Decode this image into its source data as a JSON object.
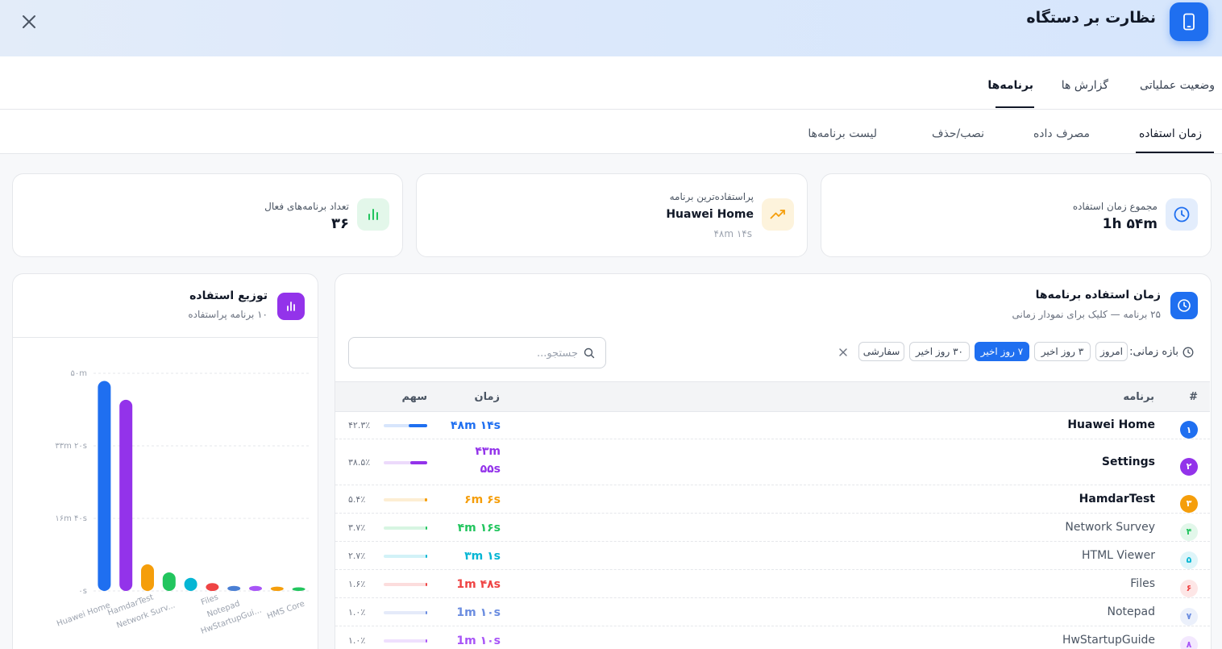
{
  "header": {
    "title": "نظارت بر دستگاه",
    "device_icon": "smartphone-icon",
    "close_icon": "close-icon"
  },
  "main_tabs": [
    {
      "label": "وضعیت عملیاتی",
      "active": false
    },
    {
      "label": "گزارش ها",
      "active": false
    },
    {
      "label": "برنامه‌ها",
      "active": true
    }
  ],
  "sub_tabs": [
    {
      "label": "زمان استفاده",
      "active": true
    },
    {
      "label": "مصرف داده",
      "active": false
    },
    {
      "label": "نصب/حذف",
      "active": false
    },
    {
      "label": "لیست برنامه‌ها",
      "active": false
    }
  ],
  "stats": {
    "total_time": {
      "label": "مجموع زمان استفاده",
      "value": "1h ۵۴m",
      "icon": "clock-icon",
      "color": "#1f6ff0"
    },
    "most_used": {
      "label": "پراستفاده‌ترین برنامه",
      "value": "Huawei Home",
      "sub": "۴۸m ۱۴s",
      "icon": "trending-up-icon",
      "color": "#f59e0b"
    },
    "active_count": {
      "label": "تعداد برنامه‌های فعال",
      "value": "۳۶",
      "icon": "bar-chart-icon",
      "color": "#22c55e"
    }
  },
  "usage_panel": {
    "title": "زمان استفاده برنامه‌ها",
    "subtitle": "۲۵ برنامه — کلیک برای نمودار زمانی",
    "range_label": "بازه زمانی:",
    "ranges": [
      {
        "label": "امروز",
        "active": false
      },
      {
        "label": "۳ روز اخیر",
        "active": false
      },
      {
        "label": "۷ روز اخیر",
        "active": true
      },
      {
        "label": "۳۰ روز اخیر",
        "active": false
      },
      {
        "label": "سفارشی",
        "active": false
      }
    ],
    "search_placeholder": "جستجو...",
    "columns": {
      "index": "#",
      "app": "برنامه",
      "time": "زمان",
      "share": "سهم"
    },
    "rows": [
      {
        "n": "۱",
        "app": "Huawei Home",
        "time": "۴۸m ۱۴s",
        "share": "۴۲.۳٪",
        "share_value": 42.3,
        "color": "#1f6ff0",
        "bold": true
      },
      {
        "n": "۲",
        "app": "Settings",
        "time": "۴۳m ۵۵s",
        "share": "۳۸.۵٪",
        "share_value": 38.5,
        "color": "#9333ea",
        "bold": true
      },
      {
        "n": "۳",
        "app": "HamdarTest",
        "time": "۶m ۶s",
        "share": "۵.۴٪",
        "share_value": 5.4,
        "color": "#f59e0b",
        "bold": true
      },
      {
        "n": "۴",
        "app": "Network Survey",
        "time": "۴m ۱۶s",
        "share": "۳.۷٪",
        "share_value": 3.7,
        "color": "#22c55e",
        "bold": false
      },
      {
        "n": "۵",
        "app": "HTML Viewer",
        "time": "۳m ۱s",
        "share": "۲.۷٪",
        "share_value": 2.7,
        "color": "#06b6d4",
        "bold": false
      },
      {
        "n": "۶",
        "app": "Files",
        "time": "1m ۴۸s",
        "share": "۱.۶٪",
        "share_value": 1.6,
        "color": "#ef4444",
        "bold": false
      },
      {
        "n": "۷",
        "app": "Notepad",
        "time": "1m ۱۰s",
        "share": "۱.۰٪",
        "share_value": 1.0,
        "color": "#6b8de0",
        "bold": false
      },
      {
        "n": "۸",
        "app": "HwStartupGuide",
        "time": "1m ۱۰s",
        "share": "۱.۰٪",
        "share_value": 1.0,
        "color": "#a855f7",
        "bold": false
      }
    ]
  },
  "distribution_panel": {
    "title": "توزیع استفاده",
    "subtitle": "۱۰ برنامه پراستفاده",
    "icon": "bar-chart-icon",
    "chart_data": {
      "type": "bar",
      "categories": [
        "Huawei Home",
        "Settings",
        "HamdarTest",
        "Network Surv...",
        "HTML Viewer",
        "Files",
        "Notepad",
        "HwStartupGui...",
        "",
        "HMS Core"
      ],
      "x_tick_labels": [
        "Huawei Home",
        "HamdarTest",
        "Network Surv...",
        "Files",
        "Notepad",
        "HwStartupGui...",
        "HMS Core"
      ],
      "values_seconds": [
        2894,
        2635,
        366,
        256,
        181,
        108,
        70,
        70,
        60,
        50
      ],
      "colors": [
        "#1f6ff0",
        "#9333ea",
        "#f59e0b",
        "#22c55e",
        "#06b6d4",
        "#ef4444",
        "#4a7fd4",
        "#a855f7",
        "#f59e0b",
        "#22c55e"
      ],
      "ylim_seconds": [
        0,
        3000
      ],
      "y_ticks": [
        {
          "value": 0,
          "label": "۰s"
        },
        {
          "value": 1000,
          "label": "۱۶m ۴۰s"
        },
        {
          "value": 2000,
          "label": "۳۳m ۲۰s"
        },
        {
          "value": 3000,
          "label": "۵۰m"
        }
      ],
      "grid": true
    }
  }
}
